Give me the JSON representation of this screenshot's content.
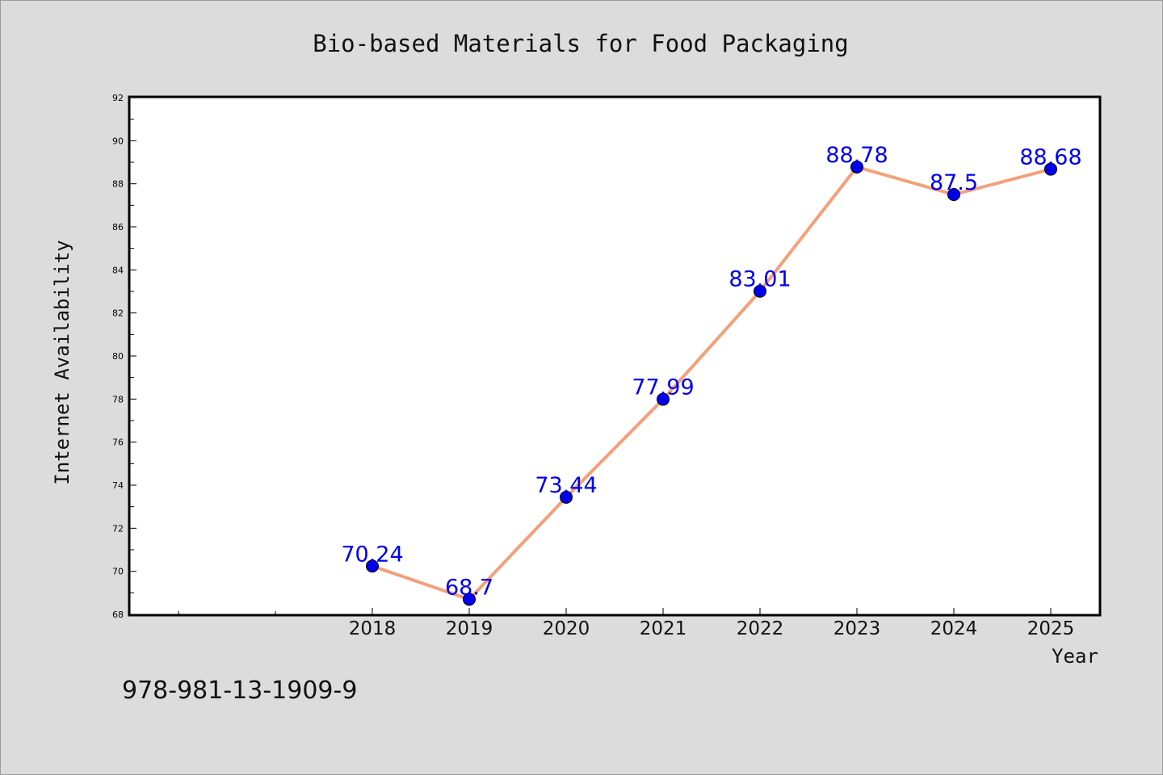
{
  "chart_data": {
    "type": "line",
    "title": "Bio-based Materials for Food Packaging",
    "xlabel": "Year",
    "ylabel": "Internet Availability",
    "x": [
      "2018",
      "2019",
      "2020",
      "2021",
      "2022",
      "2023",
      "2024",
      "2025"
    ],
    "series": [
      {
        "values": [
          70.24,
          68.7,
          73.44,
          77.99,
          83.01,
          88.78,
          87.5,
          88.68
        ],
        "data_labels": [
          "70.24",
          "68.7",
          "73.44",
          "77.99",
          "83.01",
          "88.78",
          "87.5",
          "88.68"
        ],
        "line_color": "#f4a07a",
        "marker_color": "#0000ee"
      }
    ],
    "ylim": [
      68,
      92
    ],
    "yticks": [
      68,
      70,
      72,
      74,
      76,
      78,
      80,
      82,
      84,
      86,
      88,
      90,
      92
    ],
    "grid": false,
    "legend": "none",
    "label_color": "#0000ee",
    "plot_background": "#ffffff",
    "page_background": "#dcdcdc"
  },
  "footer": {
    "isbn": "978-981-13-1909-9"
  }
}
